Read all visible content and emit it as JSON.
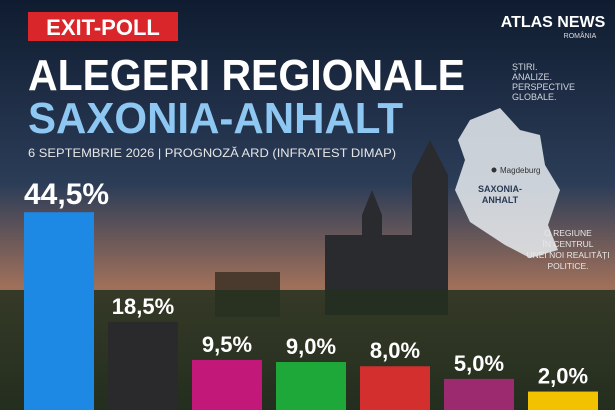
{
  "header": {
    "badge": "EXIT-POLL",
    "brand": "ATLAS NEWS",
    "brand_sub": "ROMÂNIA",
    "tagline": [
      "ȘTIRI.",
      "ANALIZE.",
      "PERSPECTIVE",
      "GLOBALE."
    ]
  },
  "map": {
    "city": "Magdeburg",
    "region": [
      "SAXONIA-",
      "ANHALT"
    ],
    "caption": [
      "O REGIUNE",
      "ÎN CENTRUL",
      "UNEI NOI REALITĂȚI",
      "POLITICE."
    ]
  },
  "chart_data": {
    "type": "bar",
    "title": "ALEGERI REGIONALE",
    "subtitle": "SAXONIA-ANHALT",
    "caption": "6 SEPTEMBRIE 2026 | PROGNOZĂ ARD (INFRATEST DIMAP)",
    "categories": [
      null,
      null,
      null,
      null,
      null,
      null,
      null
    ],
    "values": [
      44.5,
      18.5,
      9.5,
      9.0,
      8.0,
      5.0,
      2.0
    ],
    "value_labels": [
      "44,5%",
      "18,5%",
      "9,5%",
      "9,0%",
      "8,0%",
      "5,0%",
      "2,0%"
    ],
    "colors": [
      "#1e88e5",
      "#2a2a2c",
      "#c2187a",
      "#1fa83a",
      "#d32f2f",
      "#9c2a6e",
      "#f2c200"
    ]
  }
}
